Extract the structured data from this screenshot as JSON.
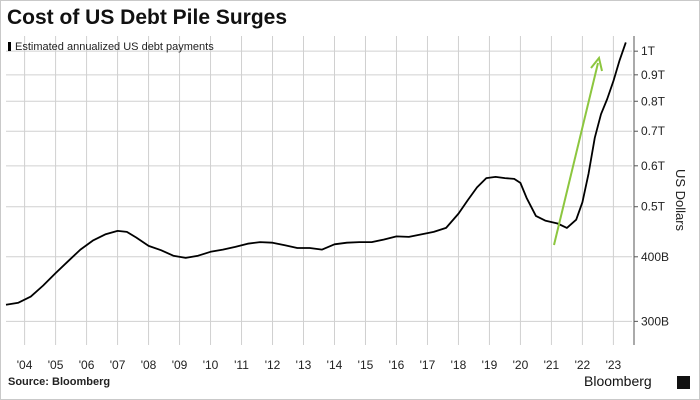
{
  "title": "Cost of US Debt Pile Surges",
  "source": "Source: Bloomberg",
  "brand": "Bloomberg",
  "brand_badge": "",
  "colors": {
    "line": "#000000",
    "arrow": "#8cc63f",
    "grid": "#d0d0d0"
  },
  "chart_data": {
    "type": "line",
    "legend": "Estimated annualized US debt payments",
    "ylabel": "US Dollars",
    "y_scale": "log",
    "ylim": [
      270,
      1070
    ],
    "ytick_labels": [
      "300B",
      "400B",
      "0.5T",
      "0.6T",
      "0.7T",
      "0.8T",
      "0.9T",
      "1T"
    ],
    "ytick_values": [
      300,
      400,
      500,
      600,
      700,
      800,
      900,
      1000
    ],
    "xlim": [
      2003.4,
      2023.6
    ],
    "xtick_labels": [
      "'04",
      "'05",
      "'06",
      "'07",
      "'08",
      "'09",
      "'10",
      "'11",
      "'12",
      "'13",
      "'14",
      "'15",
      "'16",
      "'17",
      "'18",
      "'19",
      "'20",
      "'21",
      "'22",
      "'23"
    ],
    "xtick_values": [
      2004,
      2005,
      2006,
      2007,
      2008,
      2009,
      2010,
      2011,
      2012,
      2013,
      2014,
      2015,
      2016,
      2017,
      2018,
      2019,
      2020,
      2021,
      2022,
      2023
    ],
    "series": [
      {
        "name": "Estimated annualized US debt payments",
        "x": [
          2003.4,
          2003.8,
          2004.2,
          2004.6,
          2005.0,
          2005.4,
          2005.8,
          2006.2,
          2006.6,
          2007.0,
          2007.3,
          2007.6,
          2008.0,
          2008.4,
          2008.8,
          2009.2,
          2009.6,
          2010.0,
          2010.4,
          2010.8,
          2011.2,
          2011.6,
          2012.0,
          2012.4,
          2012.8,
          2013.2,
          2013.6,
          2014.0,
          2014.4,
          2014.8,
          2015.2,
          2015.6,
          2016.0,
          2016.4,
          2016.8,
          2017.2,
          2017.6,
          2018.0,
          2018.3,
          2018.6,
          2018.9,
          2019.2,
          2019.5,
          2019.8,
          2020.0,
          2020.2,
          2020.5,
          2020.8,
          2021.2,
          2021.5,
          2021.8,
          2022.0,
          2022.2,
          2022.4,
          2022.6,
          2022.8,
          2023.0,
          2023.2,
          2023.4
        ],
        "y": [
          323,
          326,
          335,
          352,
          372,
          392,
          413,
          430,
          442,
          449,
          447,
          436,
          420,
          412,
          402,
          398,
          402,
          409,
          413,
          418,
          424,
          427,
          426,
          421,
          416,
          416,
          413,
          423,
          426,
          427,
          427,
          432,
          438,
          437,
          442,
          447,
          455,
          485,
          515,
          545,
          568,
          571,
          568,
          566,
          556,
          520,
          480,
          470,
          464,
          455,
          472,
          510,
          580,
          680,
          755,
          808,
          875,
          960,
          1040
        ]
      }
    ]
  }
}
